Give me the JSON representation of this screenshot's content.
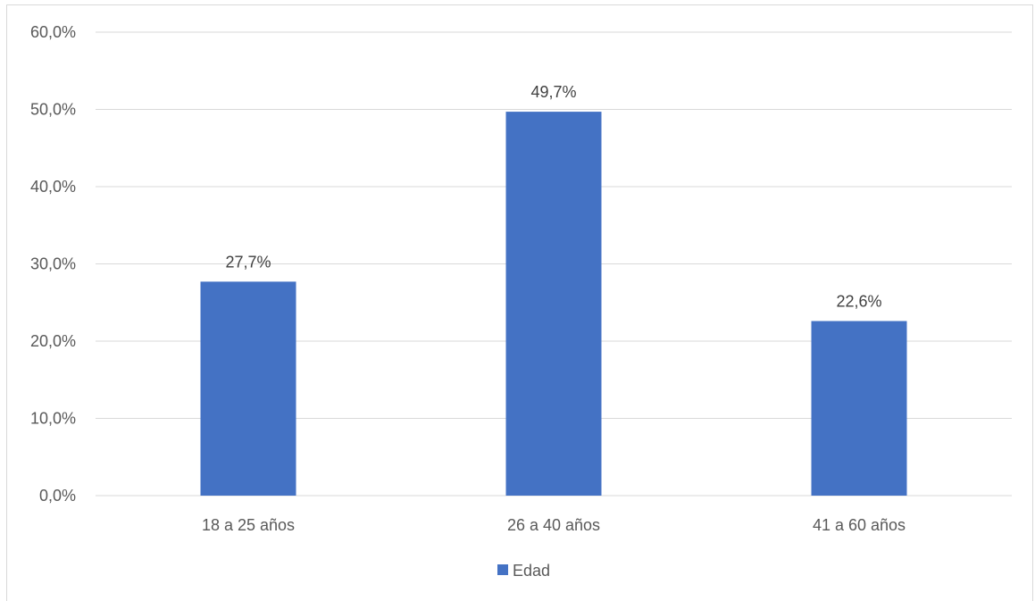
{
  "chart_data": {
    "type": "bar",
    "categories": [
      "18 a 25 años",
      "26 a 40 años",
      "41 a 60 años"
    ],
    "series": [
      {
        "name": "Edad",
        "values": [
          27.7,
          49.7,
          22.6
        ],
        "color": "#4472C4"
      }
    ],
    "data_labels": [
      "27,7%",
      "49,7%",
      "22,6%"
    ],
    "y_ticks": [
      "0,0%",
      "10,0%",
      "20,0%",
      "30,0%",
      "40,0%",
      "50,0%",
      "60,0%"
    ],
    "ylim": [
      0,
      60
    ],
    "grid": true,
    "legend": "bottom",
    "gridline_color": "#d9d9d9"
  }
}
